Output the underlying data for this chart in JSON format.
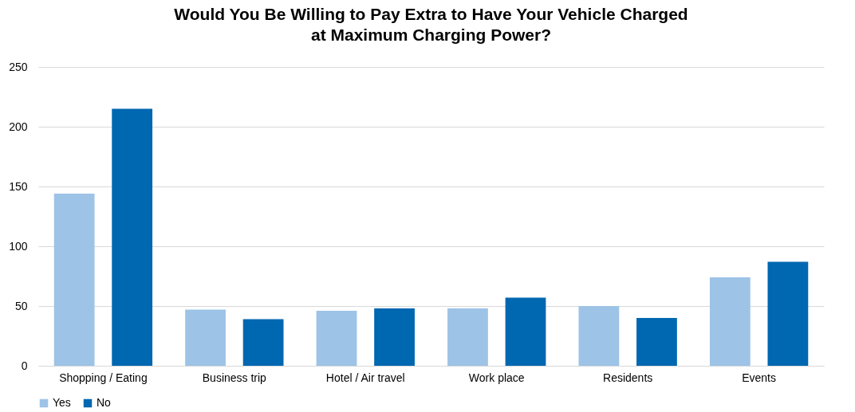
{
  "chart_data": {
    "type": "bar",
    "title": "Would You Be Willing to Pay Extra to Have Your Vehicle Charged at Maximum Charging Power?",
    "categories": [
      "Shopping / Eating",
      "Business trip",
      "Hotel / Air travel",
      "Work place",
      "Residents",
      "Events"
    ],
    "series": [
      {
        "name": "Yes",
        "color": "#9dc3e6",
        "values": [
          144,
          47,
          46,
          48,
          50,
          74
        ]
      },
      {
        "name": "No",
        "color": "#0067b1",
        "values": [
          215,
          39,
          48,
          57,
          40,
          87
        ]
      }
    ],
    "ylim": [
      0,
      250
    ],
    "yticks": [
      0,
      50,
      100,
      150,
      200,
      250
    ],
    "grid": "y",
    "legend": "bottom"
  }
}
